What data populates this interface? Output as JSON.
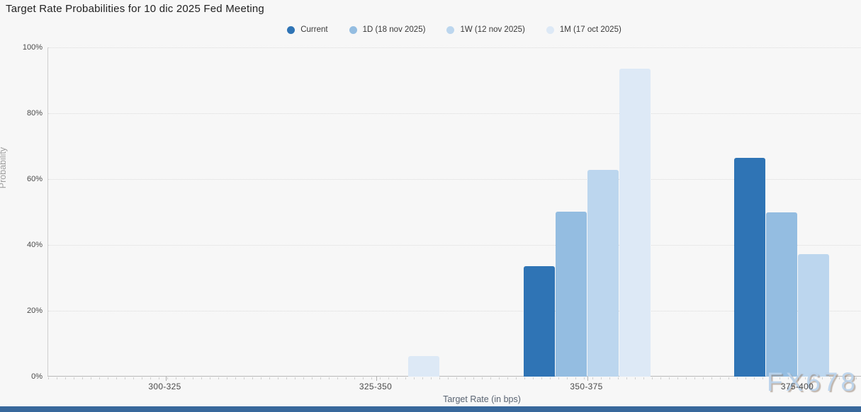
{
  "title": "Target Rate Probabilities for 10 dic 2025 Fed Meeting",
  "watermark": "FX678",
  "legend": [
    {
      "label": "Current",
      "color": "#2f74b5"
    },
    {
      "label": "1D (18 nov 2025)",
      "color": "#94bde1"
    },
    {
      "label": "1W (12 nov 2025)",
      "color": "#bcd6ee"
    },
    {
      "label": "1M (17 oct 2025)",
      "color": "#dde9f6"
    }
  ],
  "chart_data": {
    "type": "bar",
    "title": "Target Rate Probabilities for 10 dic 2025 Fed Meeting",
    "categories": [
      "300-325",
      "325-350",
      "350-375",
      "375-400"
    ],
    "series": [
      {
        "name": "Current",
        "color": "#2f74b5",
        "values": [
          0,
          0,
          33.6,
          66.4
        ]
      },
      {
        "name": "1D (18 nov 2025)",
        "color": "#94bde1",
        "values": [
          0,
          0,
          50.2,
          49.8
        ]
      },
      {
        "name": "1W (12 nov 2025)",
        "color": "#bcd6ee",
        "values": [
          0,
          0,
          62.8,
          37.2
        ]
      },
      {
        "name": "1M (17 oct 2025)",
        "color": "#dde9f6",
        "values": [
          0,
          6.2,
          93.5,
          0
        ]
      }
    ],
    "xlabel": "Target Rate (in bps)",
    "ylabel": "Probability",
    "ylim": [
      0,
      100
    ],
    "yticks": [
      "0%",
      "20%",
      "40%",
      "60%",
      "80%",
      "100%"
    ],
    "grid": "horizontal-dotted",
    "legend_position": "top-center"
  }
}
